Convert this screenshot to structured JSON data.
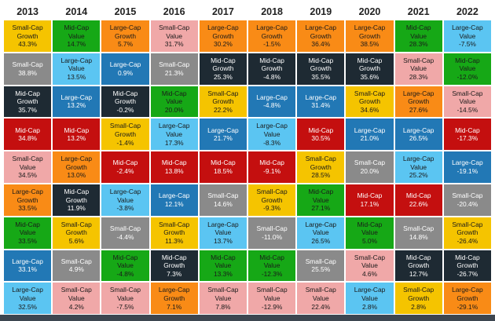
{
  "chart_data": {
    "type": "table",
    "title": "",
    "years": [
      "2013",
      "2014",
      "2015",
      "2016",
      "2017",
      "2018",
      "2019",
      "2020",
      "2021",
      "2022"
    ],
    "colors": {
      "Small-Cap Growth": "#f5c400",
      "Mid-Cap Value": "#16a816",
      "Large-Cap Growth": "#f98b16",
      "Small-Cap Value": "#f0a8a8",
      "Large-Cap Value": "#5bc5f2",
      "Small-Cap": "#8a8a8a",
      "Large-Cap": "#2278b5",
      "Mid-Cap Growth": "#1e2a33",
      "Mid-Cap": "#c40f0f"
    },
    "light_text_categories": [
      "Large-Cap",
      "Mid-Cap Growth",
      "Mid-Cap",
      "Small-Cap"
    ],
    "columns": [
      {
        "year": "2013",
        "cells": [
          {
            "l1": "Small-Cap",
            "l2": "Growth",
            "v": "43.3%",
            "cat": "Small-Cap Growth"
          },
          {
            "l1": "Small-Cap",
            "l2": "",
            "v": "38.8%",
            "cat": "Small-Cap"
          },
          {
            "l1": "Mid-Cap",
            "l2": "Growth",
            "v": "35.7%",
            "cat": "Mid-Cap Growth"
          },
          {
            "l1": "Mid-Cap",
            "l2": "",
            "v": "34.8%",
            "cat": "Mid-Cap"
          },
          {
            "l1": "Small-Cap",
            "l2": "Value",
            "v": "34.5%",
            "cat": "Small-Cap Value"
          },
          {
            "l1": "Large-Cap",
            "l2": "Growth",
            "v": "33.5%",
            "cat": "Large-Cap Growth"
          },
          {
            "l1": "Mid-Cap",
            "l2": "Value",
            "v": "33.5%",
            "cat": "Mid-Cap Value"
          },
          {
            "l1": "Large-Cap",
            "l2": "",
            "v": "33.1%",
            "cat": "Large-Cap"
          },
          {
            "l1": "Large-Cap",
            "l2": "Value",
            "v": "32.5%",
            "cat": "Large-Cap Value"
          }
        ]
      },
      {
        "year": "2014",
        "cells": [
          {
            "l1": "Mid-Cap",
            "l2": "Value",
            "v": "14.7%",
            "cat": "Mid-Cap Value"
          },
          {
            "l1": "Large-Cap",
            "l2": "Value",
            "v": "13.5%",
            "cat": "Large-Cap Value"
          },
          {
            "l1": "Large-Cap",
            "l2": "",
            "v": "13.2%",
            "cat": "Large-Cap"
          },
          {
            "l1": "Mid-Cap",
            "l2": "",
            "v": "13.2%",
            "cat": "Mid-Cap"
          },
          {
            "l1": "Large-Cap",
            "l2": "Growth",
            "v": "13.0%",
            "cat": "Large-Cap Growth"
          },
          {
            "l1": "Mid-Cap",
            "l2": "Growth",
            "v": "11.9%",
            "cat": "Mid-Cap Growth"
          },
          {
            "l1": "Small-Cap",
            "l2": "Growth",
            "v": "5.6%",
            "cat": "Small-Cap Growth"
          },
          {
            "l1": "Small-Cap",
            "l2": "",
            "v": "4.9%",
            "cat": "Small-Cap"
          },
          {
            "l1": "Small-Cap",
            "l2": "Value",
            "v": "4.2%",
            "cat": "Small-Cap Value"
          }
        ]
      },
      {
        "year": "2015",
        "cells": [
          {
            "l1": "Large-Cap",
            "l2": "Growth",
            "v": "5.7%",
            "cat": "Large-Cap Growth"
          },
          {
            "l1": "Large-Cap",
            "l2": "",
            "v": "0.9%",
            "cat": "Large-Cap"
          },
          {
            "l1": "Mid-Cap",
            "l2": "Growth",
            "v": "-0.2%",
            "cat": "Mid-Cap Growth"
          },
          {
            "l1": "Small-Cap",
            "l2": "Growth",
            "v": "-1.4%",
            "cat": "Small-Cap Growth"
          },
          {
            "l1": "Mid-Cap",
            "l2": "",
            "v": "-2.4%",
            "cat": "Mid-Cap"
          },
          {
            "l1": "Large-Cap",
            "l2": "Value",
            "v": "-3.8%",
            "cat": "Large-Cap Value"
          },
          {
            "l1": "Small-Cap",
            "l2": "",
            "v": "-4.4%",
            "cat": "Small-Cap"
          },
          {
            "l1": "Mid-Cap",
            "l2": "Value",
            "v": "-4.8%",
            "cat": "Mid-Cap Value"
          },
          {
            "l1": "Small-Cap",
            "l2": "Value",
            "v": "-7.5%",
            "cat": "Small-Cap Value"
          }
        ]
      },
      {
        "year": "2016",
        "cells": [
          {
            "l1": "Small-Cap",
            "l2": "Value",
            "v": "31.7%",
            "cat": "Small-Cap Value"
          },
          {
            "l1": "Small-Cap",
            "l2": "",
            "v": "21.3%",
            "cat": "Small-Cap"
          },
          {
            "l1": "Mid-Cap",
            "l2": "Value",
            "v": "20.0%",
            "cat": "Mid-Cap Value"
          },
          {
            "l1": "Large-Cap",
            "l2": "Value",
            "v": "17.3%",
            "cat": "Large-Cap Value"
          },
          {
            "l1": "Mid-Cap",
            "l2": "",
            "v": "13.8%",
            "cat": "Mid-Cap"
          },
          {
            "l1": "Large-Cap",
            "l2": "",
            "v": "12.1%",
            "cat": "Large-Cap"
          },
          {
            "l1": "Small-Cap",
            "l2": "Growth",
            "v": "11.3%",
            "cat": "Small-Cap Growth"
          },
          {
            "l1": "Mid-Cap",
            "l2": "Growth",
            "v": "7.3%",
            "cat": "Mid-Cap Growth"
          },
          {
            "l1": "Large-Cap",
            "l2": "Growth",
            "v": "7.1%",
            "cat": "Large-Cap Growth"
          }
        ]
      },
      {
        "year": "2017",
        "cells": [
          {
            "l1": "Large-Cap",
            "l2": "Growth",
            "v": "30.2%",
            "cat": "Large-Cap Growth"
          },
          {
            "l1": "Mid-Cap",
            "l2": "Growth",
            "v": "25.3%",
            "cat": "Mid-Cap Growth"
          },
          {
            "l1": "Small-Cap",
            "l2": "Growth",
            "v": "22.2%",
            "cat": "Small-Cap Growth"
          },
          {
            "l1": "Large-Cap",
            "l2": "",
            "v": "21.7%",
            "cat": "Large-Cap"
          },
          {
            "l1": "Mid-Cap",
            "l2": "",
            "v": "18.5%",
            "cat": "Mid-Cap"
          },
          {
            "l1": "Small-Cap",
            "l2": "",
            "v": "14.6%",
            "cat": "Small-Cap"
          },
          {
            "l1": "Large-Cap",
            "l2": "Value",
            "v": "13.7%",
            "cat": "Large-Cap Value"
          },
          {
            "l1": "Mid-Cap",
            "l2": "Value",
            "v": "13.3%",
            "cat": "Mid-Cap Value"
          },
          {
            "l1": "Small-Cap",
            "l2": "Value",
            "v": "7.8%",
            "cat": "Small-Cap Value"
          }
        ]
      },
      {
        "year": "2018",
        "cells": [
          {
            "l1": "Large-Cap",
            "l2": "Growth",
            "v": "-1.5%",
            "cat": "Large-Cap Growth"
          },
          {
            "l1": "Mid-Cap",
            "l2": "Growth",
            "v": "-4.8%",
            "cat": "Mid-Cap Growth"
          },
          {
            "l1": "Large-Cap",
            "l2": "",
            "v": "-4.8%",
            "cat": "Large-Cap"
          },
          {
            "l1": "Large-Cap",
            "l2": "Value",
            "v": "-8.3%",
            "cat": "Large-Cap Value"
          },
          {
            "l1": "Mid-Cap",
            "l2": "",
            "v": "-9.1%",
            "cat": "Mid-Cap"
          },
          {
            "l1": "Small-Cap",
            "l2": "Growth",
            "v": "-9.3%",
            "cat": "Small-Cap Growth"
          },
          {
            "l1": "Small-Cap",
            "l2": "",
            "v": "-11.0%",
            "cat": "Small-Cap"
          },
          {
            "l1": "Mid-Cap",
            "l2": "Value",
            "v": "-12.3%",
            "cat": "Mid-Cap Value"
          },
          {
            "l1": "Small-Cap",
            "l2": "Value",
            "v": "-12.9%",
            "cat": "Small-Cap Value"
          }
        ]
      },
      {
        "year": "2019",
        "cells": [
          {
            "l1": "Large-Cap",
            "l2": "Growth",
            "v": "36.4%",
            "cat": "Large-Cap Growth"
          },
          {
            "l1": "Mid-Cap",
            "l2": "Growth",
            "v": "35.5%",
            "cat": "Mid-Cap Growth"
          },
          {
            "l1": "Large-Cap",
            "l2": "",
            "v": "31.4%",
            "cat": "Large-Cap"
          },
          {
            "l1": "Mid-Cap",
            "l2": "",
            "v": "30.5%",
            "cat": "Mid-Cap"
          },
          {
            "l1": "Small-Cap",
            "l2": "Growth",
            "v": "28.5%",
            "cat": "Small-Cap Growth"
          },
          {
            "l1": "Mid-Cap",
            "l2": "Value",
            "v": "27.1%",
            "cat": "Mid-Cap Value"
          },
          {
            "l1": "Large-Cap",
            "l2": "Value",
            "v": "26.5%",
            "cat": "Large-Cap Value"
          },
          {
            "l1": "Small-Cap",
            "l2": "",
            "v": "25.5%",
            "cat": "Small-Cap"
          },
          {
            "l1": "Small-Cap",
            "l2": "Value",
            "v": "22.4%",
            "cat": "Small-Cap Value"
          }
        ]
      },
      {
        "year": "2020",
        "cells": [
          {
            "l1": "Large-Cap",
            "l2": "Growth",
            "v": "38.5%",
            "cat": "Large-Cap Growth"
          },
          {
            "l1": "Mid-Cap",
            "l2": "Growth",
            "v": "35.6%",
            "cat": "Mid-Cap Growth"
          },
          {
            "l1": "Small-Cap",
            "l2": "Growth",
            "v": "34.6%",
            "cat": "Small-Cap Growth"
          },
          {
            "l1": "Large-Cap",
            "l2": "",
            "v": "21.0%",
            "cat": "Large-Cap"
          },
          {
            "l1": "Small-Cap",
            "l2": "",
            "v": "20.0%",
            "cat": "Small-Cap"
          },
          {
            "l1": "Mid-Cap",
            "l2": "",
            "v": "17.1%",
            "cat": "Mid-Cap"
          },
          {
            "l1": "Mid-Cap",
            "l2": "Value",
            "v": "5.0%",
            "cat": "Mid-Cap Value"
          },
          {
            "l1": "Small-Cap",
            "l2": "Value",
            "v": "4.6%",
            "cat": "Small-Cap Value"
          },
          {
            "l1": "Large-Cap",
            "l2": "Value",
            "v": "2.8%",
            "cat": "Large-Cap Value"
          }
        ]
      },
      {
        "year": "2021",
        "cells": [
          {
            "l1": "Mid-Cap",
            "l2": "Value",
            "v": "28.3%",
            "cat": "Mid-Cap Value"
          },
          {
            "l1": "Small-Cap",
            "l2": "Value",
            "v": "28.3%",
            "cat": "Small-Cap Value"
          },
          {
            "l1": "Large-Cap",
            "l2": "Growth",
            "v": "27.6%",
            "cat": "Large-Cap Growth"
          },
          {
            "l1": "Large-Cap",
            "l2": "",
            "v": "26.5%",
            "cat": "Large-Cap"
          },
          {
            "l1": "Large-Cap",
            "l2": "Value",
            "v": "25.2%",
            "cat": "Large-Cap Value"
          },
          {
            "l1": "Mid-Cap",
            "l2": "",
            "v": "22.6%",
            "cat": "Mid-Cap"
          },
          {
            "l1": "Small-Cap",
            "l2": "",
            "v": "14.8%",
            "cat": "Small-Cap"
          },
          {
            "l1": "Mid-Cap",
            "l2": "Growth",
            "v": "12.7%",
            "cat": "Mid-Cap Growth"
          },
          {
            "l1": "Small-Cap",
            "l2": "Growth",
            "v": "2.8%",
            "cat": "Small-Cap Growth"
          }
        ]
      },
      {
        "year": "2022",
        "cells": [
          {
            "l1": "Large-Cap",
            "l2": "Value",
            "v": "-7.5%",
            "cat": "Large-Cap Value"
          },
          {
            "l1": "Mid-Cap",
            "l2": "Value",
            "v": "-12.0%",
            "cat": "Mid-Cap Value"
          },
          {
            "l1": "Small-Cap",
            "l2": "Value",
            "v": "-14.5%",
            "cat": "Small-Cap Value"
          },
          {
            "l1": "Mid-Cap",
            "l2": "",
            "v": "-17.3%",
            "cat": "Mid-Cap"
          },
          {
            "l1": "Large-Cap",
            "l2": "",
            "v": "-19.1%",
            "cat": "Large-Cap"
          },
          {
            "l1": "Small-Cap",
            "l2": "",
            "v": "-20.4%",
            "cat": "Small-Cap"
          },
          {
            "l1": "Small-Cap",
            "l2": "Growth",
            "v": "-26.4%",
            "cat": "Small-Cap Growth"
          },
          {
            "l1": "Mid-Cap",
            "l2": "Growth",
            "v": "-26.7%",
            "cat": "Mid-Cap Growth"
          },
          {
            "l1": "Large-Cap",
            "l2": "Growth",
            "v": "-29.1%",
            "cat": "Large-Cap Growth"
          }
        ]
      }
    ]
  }
}
